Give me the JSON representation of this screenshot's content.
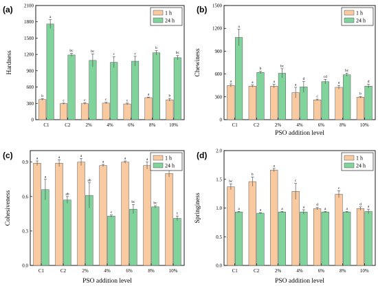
{
  "colors": {
    "series_1h": "#f9c9a0",
    "series_24h": "#7fd39b",
    "edge": "#555555"
  },
  "chart_data": [
    {
      "type": "bar",
      "panel_label": "(a)",
      "ylabel": "Hardness",
      "xlabel": "",
      "categories": [
        "C1",
        "C2",
        "2%",
        "4%",
        "6%",
        "8%",
        "10%"
      ],
      "ylim": [
        0,
        2100
      ],
      "yticks": [
        0,
        300,
        600,
        900,
        1200,
        1500,
        1800,
        2100
      ],
      "legend": "top-right",
      "series": [
        {
          "name": "1 h",
          "values": [
            370,
            295,
            295,
            305,
            290,
            405,
            365
          ],
          "errors": [
            15,
            10,
            15,
            15,
            15,
            10,
            25
          ],
          "sig": [
            "b",
            "c",
            "c",
            "c",
            "c",
            "a",
            "b"
          ]
        },
        {
          "name": "24 h",
          "values": [
            1760,
            1190,
            1090,
            1055,
            1075,
            1230,
            1140
          ],
          "errors": [
            80,
            30,
            120,
            100,
            90,
            40,
            40
          ],
          "sig": [
            "a",
            "bc",
            "bc",
            "c",
            "c",
            "b",
            "bc"
          ]
        }
      ]
    },
    {
      "type": "bar",
      "panel_label": "(b)",
      "ylabel": "Chewiness",
      "xlabel": "PSO addition level",
      "categories": [
        "C1",
        "C2",
        "2%",
        "4%",
        "6%",
        "8%",
        "10%"
      ],
      "ylim": [
        0,
        1500
      ],
      "yticks": [
        0,
        300,
        600,
        900,
        1200,
        1500
      ],
      "legend": "top-right",
      "series": [
        {
          "name": "1 h",
          "values": [
            450,
            440,
            440,
            355,
            260,
            425,
            295
          ],
          "errors": [
            20,
            15,
            25,
            70,
            10,
            25,
            10
          ],
          "sig": [
            "a",
            "a",
            "a",
            "a",
            "c",
            "a",
            "b"
          ]
        },
        {
          "name": "24 h",
          "values": [
            1080,
            620,
            610,
            430,
            500,
            590,
            440
          ],
          "errors": [
            110,
            15,
            60,
            70,
            30,
            20,
            25
          ],
          "sig": [
            "a",
            "b",
            "bc",
            "d",
            "cd",
            "bc",
            "d"
          ]
        }
      ]
    },
    {
      "type": "bar",
      "panel_label": "(c)",
      "ylabel": "Cohesiveness",
      "xlabel": "PSO addition level",
      "categories": [
        "C1",
        "C2",
        "2%",
        "4%",
        "6%",
        "8%",
        "10%"
      ],
      "ylim": [
        0,
        1.0
      ],
      "yticks": [
        0.0,
        0.3,
        0.6,
        0.9
      ],
      "ytick_labels": [
        "0.0",
        "0.3",
        "0.6",
        "0.9"
      ],
      "legend": "top-right",
      "series": [
        {
          "name": "1 h",
          "values": [
            0.89,
            0.89,
            0.9,
            0.87,
            0.9,
            0.87,
            0.8
          ],
          "errors": [
            0.02,
            0.03,
            0.03,
            0.01,
            0.01,
            0.03,
            0.03
          ],
          "sig": [
            "a",
            "a",
            "a",
            "a",
            "a",
            "a",
            "b"
          ]
        },
        {
          "name": "24 h",
          "values": [
            0.66,
            0.57,
            0.61,
            0.43,
            0.49,
            0.51,
            0.41
          ],
          "errors": [
            0.09,
            0.03,
            0.11,
            0.01,
            0.04,
            0.01,
            0.02
          ],
          "sig": [
            "a",
            "ab",
            "ab",
            "c",
            "bc",
            "bc",
            "c"
          ]
        }
      ]
    },
    {
      "type": "bar",
      "panel_label": "(d)",
      "ylabel": "Springiness",
      "xlabel": "PSO addition level",
      "categories": [
        "C1",
        "C2",
        "2%",
        "4%",
        "6%",
        "8%",
        "10%"
      ],
      "ylim": [
        0,
        2.0
      ],
      "yticks": [
        0.0,
        0.5,
        1.0,
        1.5,
        2.0
      ],
      "ytick_labels": [
        "0.0",
        "0.5",
        "1.0",
        "1.5",
        "2.0"
      ],
      "legend": "top-right",
      "series": [
        {
          "name": "1 h",
          "values": [
            1.37,
            1.46,
            1.66,
            1.29,
            0.99,
            1.24,
            0.99
          ],
          "errors": [
            0.05,
            0.08,
            0.03,
            0.14,
            0.02,
            0.06,
            0.03
          ],
          "sig": [
            "bc",
            "b",
            "a",
            "c",
            "d",
            "c",
            "d"
          ]
        },
        {
          "name": "24 h",
          "values": [
            0.93,
            0.91,
            0.93,
            0.93,
            0.93,
            0.93,
            0.94
          ],
          "errors": [
            0.01,
            0.01,
            0.01,
            0.04,
            0.01,
            0.01,
            0.04
          ],
          "sig": [
            "a",
            "a",
            "a",
            "a",
            "a",
            "a",
            "a"
          ]
        }
      ]
    }
  ]
}
